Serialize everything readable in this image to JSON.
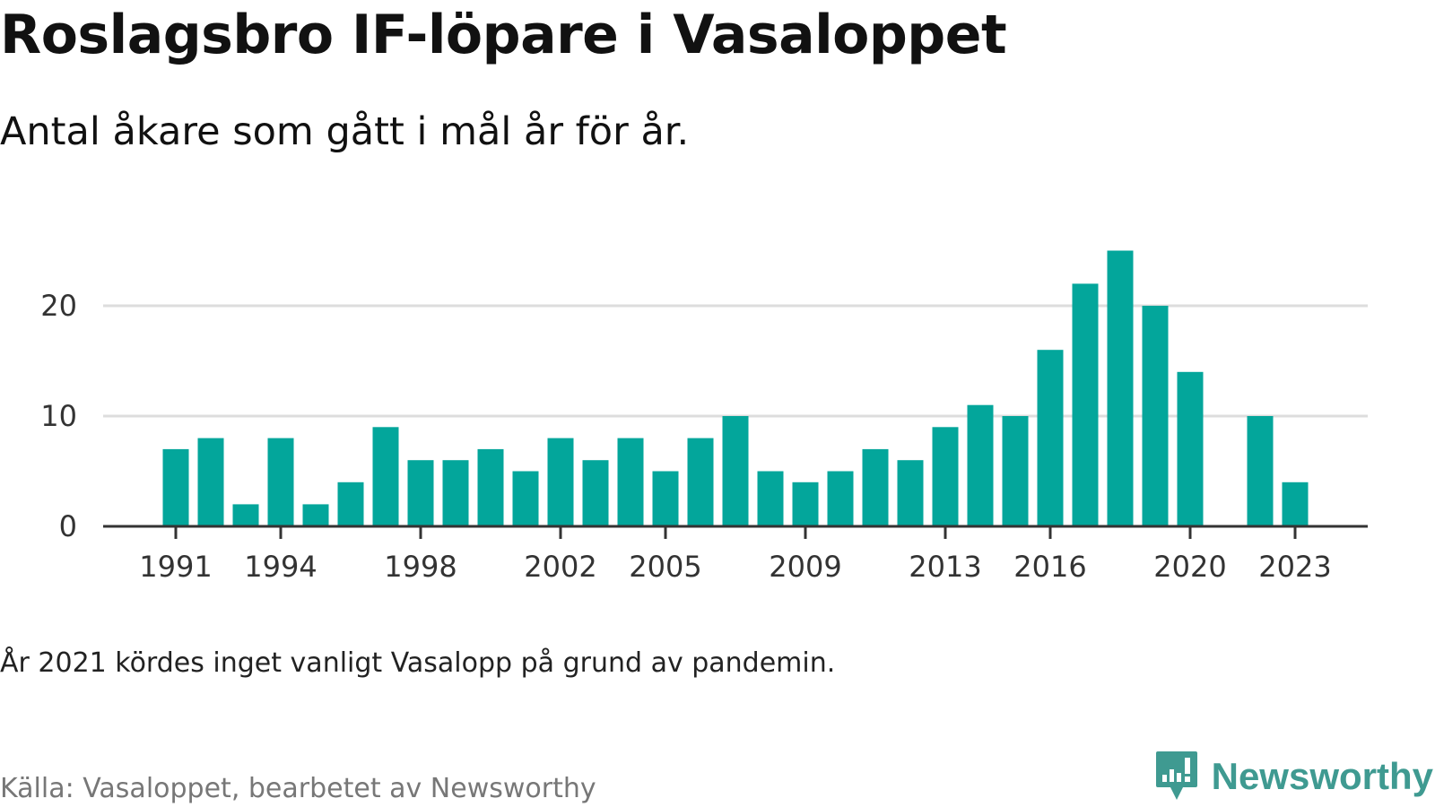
{
  "title": "Roslagsbro IF-löpare i Vasaloppet",
  "subtitle": "Antal åkare som gått i mål år för år.",
  "note": "År 2021 kördes inget vanligt Vasalopp på grund av pandemin.",
  "source": "Källa: Vasaloppet, bearbetet av Newsworthy",
  "brand": {
    "name": "Newsworthy",
    "icon": "newsworthy-logo-icon",
    "color": "#3f9a91"
  },
  "colors": {
    "bar": "#03a69b",
    "grid": "#dddddd",
    "axis": "#333333"
  },
  "chart_data": {
    "type": "bar",
    "title": "Roslagsbro IF-löpare i Vasaloppet",
    "subtitle": "Antal åkare som gått i mål år för år.",
    "xlabel": "",
    "ylabel": "",
    "categories": [
      1991,
      1992,
      1993,
      1994,
      1995,
      1996,
      1997,
      1998,
      1999,
      2000,
      2001,
      2002,
      2003,
      2004,
      2005,
      2006,
      2007,
      2008,
      2009,
      2010,
      2011,
      2012,
      2013,
      2014,
      2015,
      2016,
      2017,
      2018,
      2019,
      2020,
      2021,
      2022,
      2023
    ],
    "values": [
      7,
      8,
      2,
      8,
      2,
      4,
      9,
      6,
      6,
      7,
      5,
      8,
      6,
      8,
      5,
      8,
      10,
      5,
      4,
      5,
      7,
      6,
      9,
      11,
      10,
      16,
      22,
      25,
      20,
      14,
      null,
      10,
      4
    ],
    "x_tick_labels": [
      "1991",
      "1994",
      "1998",
      "2002",
      "2005",
      "2009",
      "2013",
      "2016",
      "2020",
      "2023"
    ],
    "y_ticks": [
      0,
      10,
      20
    ],
    "ylim": [
      0,
      25
    ],
    "grid": true,
    "legend": "none"
  }
}
